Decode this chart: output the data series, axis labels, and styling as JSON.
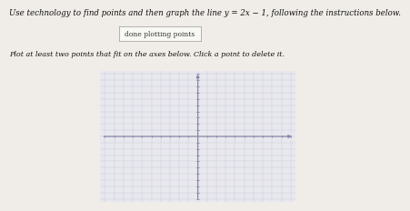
{
  "title": "Use technology to find points and then graph the line y = 2x − 1, following the instructions below.",
  "button_text": "done plotting points",
  "instruction_text": "Plot at least two points that fit on the axes below. Click a point to delete it.",
  "xlim": [
    -10,
    10
  ],
  "ylim": [
    -10,
    10
  ],
  "xticks": [
    -10,
    -9,
    -8,
    -7,
    -6,
    -5,
    -4,
    -3,
    -2,
    -1,
    0,
    1,
    2,
    3,
    4,
    5,
    6,
    7,
    8,
    9,
    10
  ],
  "yticks": [
    -10,
    -9,
    -8,
    -7,
    -6,
    -5,
    -4,
    -3,
    -2,
    -1,
    0,
    1,
    2,
    3,
    4,
    5,
    6,
    7,
    8,
    9,
    10
  ],
  "grid_color": "#ccccdd",
  "axis_color": "#8888aa",
  "bg_color": "#f0ede8",
  "plot_bg": "#e8e8ee",
  "title_fontsize": 6.2,
  "instruction_fontsize": 5.8,
  "button_fontsize": 5.5
}
